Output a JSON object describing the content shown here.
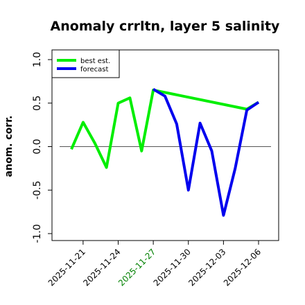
{
  "chart_data": {
    "type": "line",
    "title": "Anomaly crrltn, layer 5 salinity",
    "xlabel": "",
    "ylabel": "anom. corr.",
    "ylim": [
      -1.0,
      1.0
    ],
    "yticks": [
      "-1.0",
      "-0.5",
      "0.0",
      "0.5",
      "1.0"
    ],
    "yticks_values": [
      -1.0,
      -0.5,
      0.0,
      0.5,
      1.0
    ],
    "xtick_labels": [
      "2025-11-21",
      "2025-11-24",
      "2025-11-27",
      "2025-11-30",
      "2025-12-03",
      "2025-12-06"
    ],
    "xtick_colors": [
      "#000000",
      "#000000",
      "#008000",
      "#000000",
      "#000000",
      "#000000"
    ],
    "x": [
      "2025-11-20",
      "2025-11-21",
      "2025-11-22",
      "2025-11-23",
      "2025-11-24",
      "2025-11-25",
      "2025-11-26",
      "2025-11-27",
      "2025-11-28",
      "2025-11-29",
      "2025-11-30",
      "2025-12-01",
      "2025-12-02",
      "2025-12-03",
      "2025-12-04",
      "2025-12-05",
      "2025-12-06"
    ],
    "series": [
      {
        "name": "best est.",
        "color": "#00ee00",
        "values": [
          -0.03,
          0.28,
          0.04,
          -0.24,
          0.5,
          0.56,
          -0.05,
          0.65,
          null,
          null,
          null,
          null,
          null,
          null,
          null,
          0.43,
          0.51
        ]
      },
      {
        "name": "forecast",
        "color": "#0000ee",
        "values": [
          null,
          null,
          null,
          null,
          null,
          null,
          null,
          0.66,
          0.58,
          0.26,
          -0.5,
          0.27,
          -0.05,
          -0.79,
          -0.25,
          0.42,
          0.51
        ]
      }
    ],
    "zero_line": 0.0,
    "grid": false,
    "legend_position": "top-left"
  }
}
